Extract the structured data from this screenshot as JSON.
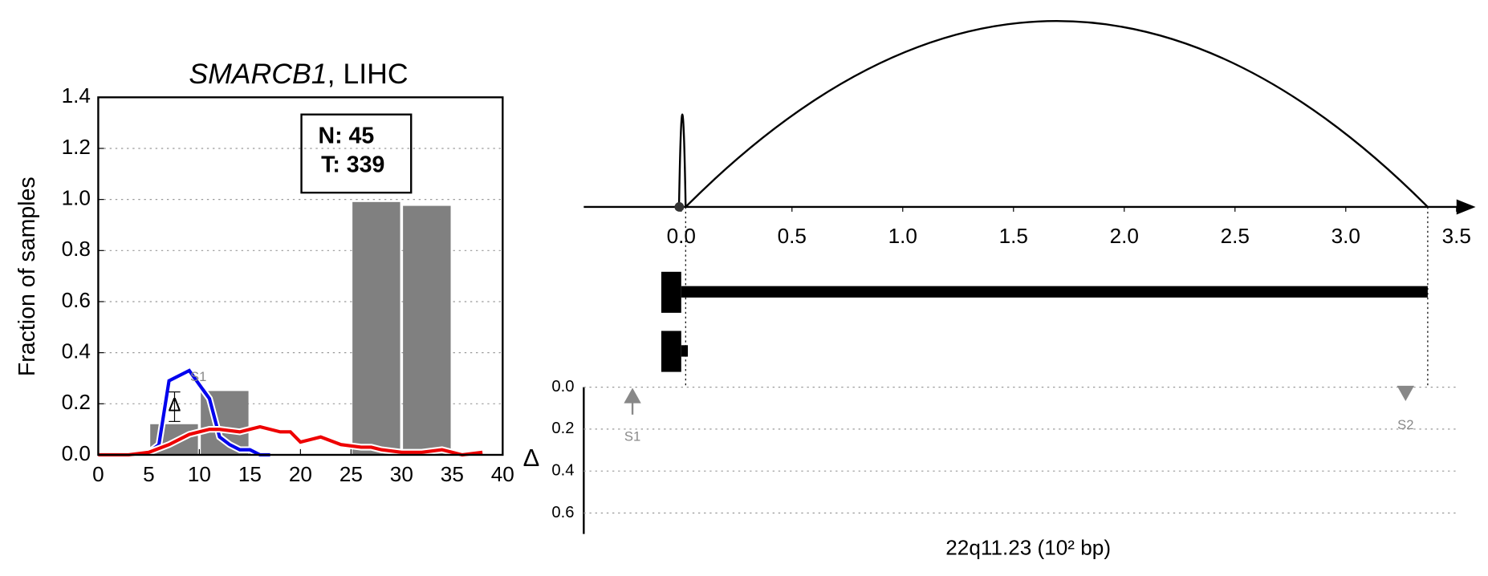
{
  "chart_data": [
    {
      "type": "histogram",
      "title_gene": "SMARCB1",
      "title_rest": ", LIHC",
      "ylabel": "Fraction of samples",
      "stats": [
        "N: 45",
        "T: 339"
      ],
      "annotations": [
        "S1",
        "Δ"
      ],
      "bins": [
        5,
        10,
        15,
        20,
        25,
        30,
        35
      ],
      "values": [
        0.12,
        0.25,
        0,
        0,
        0.99,
        0.975
      ],
      "color": "#808080",
      "series": [
        {
          "color": "#0000ee",
          "x": [
            0,
            2,
            4,
            5,
            6,
            7,
            9,
            11,
            12,
            13,
            14,
            15,
            16,
            17
          ],
          "values": [
            0,
            0,
            0,
            0.01,
            0.04,
            0.29,
            0.33,
            0.22,
            0.07,
            0.04,
            0.02,
            0.02,
            0.0,
            0
          ]
        },
        {
          "color": "#ee0000",
          "x": [
            0,
            3,
            5,
            7,
            9,
            11,
            12,
            14,
            15,
            16,
            18,
            19,
            20,
            21,
            22,
            24,
            26,
            27,
            28,
            30,
            32,
            34,
            36,
            38
          ],
          "values": [
            0,
            0,
            0.01,
            0.04,
            0.08,
            0.1,
            0.1,
            0.09,
            0.1,
            0.11,
            0.09,
            0.09,
            0.05,
            0.06,
            0.07,
            0.04,
            0.03,
            0.03,
            0.02,
            0.01,
            0.01,
            0.02,
            0,
            0.01
          ]
        }
      ],
      "xlim": [
        0,
        40
      ],
      "xticks": [
        0,
        5,
        10,
        15,
        20,
        25,
        30,
        35,
        40
      ],
      "ylim": [
        0,
        1.4
      ],
      "yticks": [
        {
          "value": 0,
          "label": "0.0"
        },
        0.2,
        0.4,
        0.6,
        0.8,
        {
          "value": 1,
          "label": "1.0"
        },
        1.2,
        1.4
      ],
      "grid": true
    },
    {
      "type": "arc",
      "xlabel": "22q11.23 (10² bp)",
      "ylabel": "Δ",
      "xlim": [
        -0.44,
        3.5
      ],
      "xticks": [
        {
          "value": 0,
          "label": "0.0"
        },
        0.5,
        {
          "value": 1,
          "label": "1.0"
        },
        1.5,
        {
          "value": 2,
          "label": "2.0"
        },
        2.5,
        {
          "value": 3,
          "label": "3.0"
        },
        3.5
      ],
      "arcs": [
        {
          "start": -0.01,
          "end": 0.02
        },
        {
          "start": 0.02,
          "end": 3.37
        }
      ],
      "tracks": [
        {
          "start": -0.09,
          "end": 3.37
        },
        {
          "start": -0.09,
          "end": 0.03
        }
      ],
      "ylim": [
        0,
        0.7
      ],
      "yticks": [
        {
          "value": 0,
          "label": "0.0"
        },
        0.2,
        0.4,
        0.6
      ],
      "markers": [
        {
          "label": "S1",
          "x": -0.22,
          "value": 0.04,
          "direction": "up"
        },
        {
          "label": "S2",
          "x": 3.27,
          "value": 0.03,
          "direction": "down"
        }
      ],
      "grid": true
    }
  ]
}
